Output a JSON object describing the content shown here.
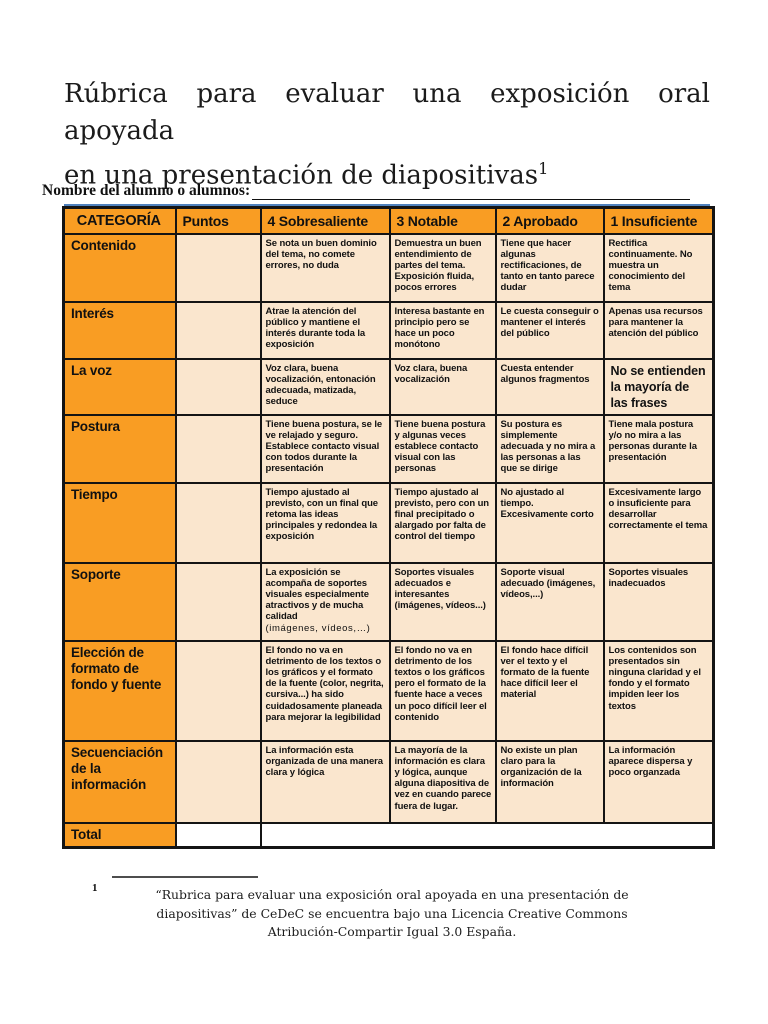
{
  "colors": {
    "orange": "#F99D23",
    "peach": "#FAE6CE",
    "underline_blue": "#4F81BD",
    "border_black": "#141414"
  },
  "title": {
    "line1": "Rúbrica para evaluar una exposición oral apoyada",
    "line2": "en una presentación de diapositivas",
    "superscript": "1"
  },
  "name_field": {
    "label": "Nombre del alumno o alumnos:",
    "value": ""
  },
  "table": {
    "headers": [
      "CATEGORÍA",
      "Puntos",
      "4 Sobresaliente",
      "3 Notable",
      "2 Aprobado",
      "1 Insuficiente"
    ],
    "rows": [
      {
        "category": "Contenido",
        "puntos": "",
        "cells": [
          "Se nota un buen dominio del tema, no comete errores, no duda",
          "Demuestra un buen entendimiento de partes del tema. Exposición fluida, pocos errores",
          "Tiene que hacer algunas rectificaciones, de tanto en tanto parece dudar",
          "Rectifica continuamente. No muestra un conocimiento del tema"
        ]
      },
      {
        "category": "Interés",
        "puntos": "",
        "cells": [
          "Atrae la atención del público y mantiene el interés durante toda la exposición",
          "Interesa bastante en principio pero se hace un poco monótono",
          "Le cuesta conseguir o mantener el interés del público",
          "Apenas usa recursos para mantener la atención del público"
        ]
      },
      {
        "category": "La voz",
        "puntos": "",
        "cells": [
          "Voz clara, buena vocalización, entonación adecuada, matizada, seduce",
          "Voz clara, buena vocalización",
          "Cuesta entender algunos fragmentos",
          {
            "text": "No se entienden la mayoría de las frases",
            "large": true
          }
        ]
      },
      {
        "category": "Postura",
        "puntos": "",
        "cells": [
          "Tiene buena postura, se le ve relajado y seguro. Establece contacto visual con todos durante la presentación",
          "Tiene buena postura y algunas veces establece contacto visual con las personas",
          "Su postura es simplemente adecuada y no mira a las personas a las que se dirige",
          "Tiene mala postura y/o no mira a las personas durante la presentación"
        ]
      },
      {
        "category": "Tiempo",
        "puntos": "",
        "cells": [
          "Tiempo ajustado al previsto, con un final que retoma las ideas principales y redondea la exposición",
          "Tiempo ajustado al previsto, pero con un final precipitado o alargado por falta de control del tiempo",
          "No ajustado al tiempo. Excesivamente corto",
          "Excesivamente largo o insuficiente para desarrollar correctamente el tema"
        ]
      },
      {
        "category": "Soporte",
        "puntos": "",
        "cells": [
          {
            "text": "La exposición se acompaña de soportes visuales especialmente atractivos y de mucha calidad",
            "suffix": "(imágenes, vídeos,…)"
          },
          "Soportes visuales adecuados e interesantes (imágenes, vídeos...)",
          "Soporte visual adecuado (imágenes, vídeos,...)",
          "Soportes visuales inadecuados"
        ]
      },
      {
        "category": "Elección de formato de fondo y fuente",
        "puntos": "",
        "cells": [
          "El fondo no va en detrimento de los textos o los gráficos y el formato de la fuente (color, negrita, cursiva...) ha sido cuidadosamente planeada para mejorar la legibilidad",
          "El fondo no va en detrimento de los textos o los gráficos pero el formato de la fuente hace a veces un poco difícil leer el contenido",
          "El fondo hace difícil ver el texto y el formato de la fuente hace difícil leer el material",
          "Los contenidos son presentados sin ninguna claridad y el fondo y el formato impiden leer los textos"
        ]
      },
      {
        "category": "Secuenciación de la información",
        "puntos": "",
        "cells": [
          "La información esta organizada de una manera clara y lógica",
          "La mayoría de la información es clara y lógica, aunque alguna diapositiva de vez en cuando parece fuera de lugar.",
          "No existe un plan claro para la organización de la información",
          "La información aparece dispersa y poco organzada"
        ]
      },
      {
        "category": "Total",
        "puntos": "",
        "merged": true,
        "merged_value": "",
        "cells": []
      }
    ]
  },
  "footnote": {
    "marker": "1",
    "text": "“Rubrica para evaluar una exposición oral apoyada en una presentación de diapositivas” de CeDeC se encuentra bajo una Licencia Creative Commons Atribución-Compartir Igual 3.0 España."
  }
}
